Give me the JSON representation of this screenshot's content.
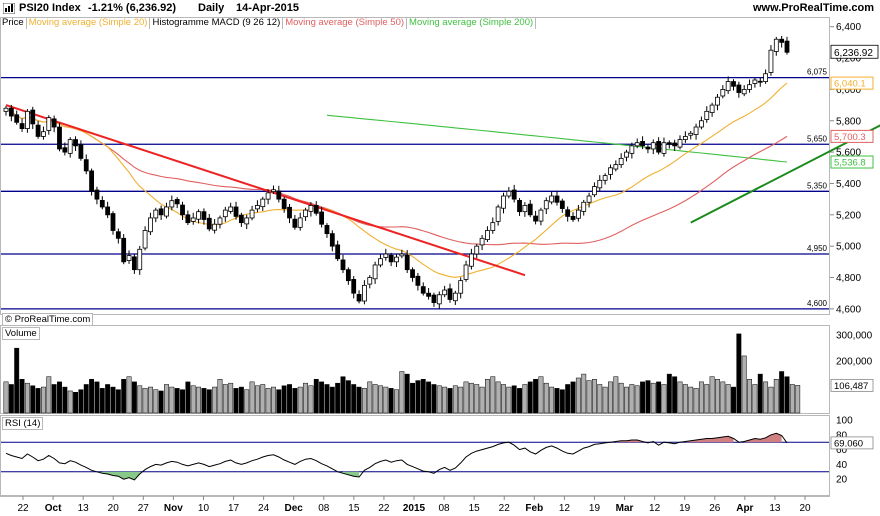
{
  "header": {
    "symbol": "PSI20 Index",
    "change": "-1.21% (6,236.92)",
    "period": "Daily",
    "date": "14-Apr-2015",
    "site": "www.ProRealTime.com"
  },
  "legend": {
    "items": [
      {
        "label": "Price",
        "color": "#000000"
      },
      {
        "label": "Moving average (Simple 20)",
        "color": "#f0b030"
      },
      {
        "label": "Histogramme MACD (9 26 12)",
        "color": "#000000"
      },
      {
        "label": "Moving average (Simple 50)",
        "color": "#e06060"
      },
      {
        "label": "Moving average (Simple 200)",
        "color": "#40c040"
      }
    ]
  },
  "copyright": "© ProRealTime.com",
  "volume_label": "Volume",
  "rsi_label": "RSI (14)",
  "colors": {
    "up_candle": "#ffffff",
    "down_candle": "#000000",
    "support_lines": "#00008b",
    "downtrend": "#ee2222",
    "uptrend": "#1a8a1a",
    "ma20": "#f0b030",
    "ma50": "#e06060",
    "ma200": "#40c040",
    "rsi_overbought_fill": "#d08080",
    "rsi_oversold_fill": "#88c888"
  },
  "chart_data": {
    "type": "candlestick",
    "title": "PSI20 Index",
    "price_axis": {
      "ticks": [
        4600,
        4800,
        5000,
        5200,
        5400,
        5600,
        5800,
        6000,
        6200,
        6400
      ],
      "ylim": [
        4580,
        6430
      ]
    },
    "x_tick_labels": [
      "22",
      "Oct",
      "13",
      "20",
      "27",
      "Nov",
      "10",
      "17",
      "24",
      "Dec",
      "08",
      "15",
      "22",
      "2015",
      "08",
      "15",
      "22",
      "Feb",
      "12",
      "19",
      "Mar",
      "12",
      "19",
      "26",
      "Apr",
      "13",
      "20"
    ],
    "horizontal_levels": [
      {
        "label": "6,075",
        "value": 6075
      },
      {
        "label": "5,650",
        "value": 5650
      },
      {
        "label": "5,350",
        "value": 5350
      },
      {
        "label": "4,950",
        "value": 4950
      },
      {
        "label": "4,600",
        "value": 4600
      }
    ],
    "last_price": {
      "label": "6,236.92",
      "value": 6236.92
    },
    "ma_values": [
      {
        "name": "Moving average (Simple 20)",
        "label": "6,040.1",
        "value": 6040.1
      },
      {
        "name": "Moving average (Simple 50)",
        "label": "5,700.3",
        "value": 5700.3
      },
      {
        "name": "Moving average (Simple 200)",
        "label": "5,536.8",
        "value": 5536.8
      }
    ],
    "trendlines": [
      {
        "name": "downtrend",
        "from": [
          0,
          5900
        ],
        "to": [
          120,
          4815
        ]
      },
      {
        "name": "uptrend",
        "from": [
          128,
          5150
        ],
        "to": [
          182,
          6135
        ]
      }
    ],
    "closes": [
      5880,
      5830,
      5790,
      5750,
      5860,
      5780,
      5700,
      5730,
      5820,
      5760,
      5620,
      5600,
      5680,
      5640,
      5560,
      5480,
      5350,
      5300,
      5250,
      5200,
      5100,
      5050,
      4900,
      4940,
      4850,
      4980,
      5100,
      5180,
      5230,
      5200,
      5250,
      5290,
      5270,
      5200,
      5150,
      5180,
      5220,
      5170,
      5110,
      5140,
      5180,
      5230,
      5250,
      5190,
      5150,
      5180,
      5230,
      5260,
      5300,
      5340,
      5360,
      5300,
      5240,
      5180,
      5120,
      5180,
      5230,
      5260,
      5210,
      5140,
      5080,
      5000,
      4920,
      4850,
      4780,
      4700,
      4650,
      4750,
      4800,
      4880,
      4920,
      4950,
      4900,
      4930,
      4950,
      4850,
      4800,
      4750,
      4700,
      4680,
      4640,
      4690,
      4720,
      4660,
      4700,
      4780,
      4880,
      4950,
      5000,
      5050,
      5100,
      5150,
      5250,
      5320,
      5350,
      5300,
      5220,
      5260,
      5200,
      5160,
      5230,
      5290,
      5320,
      5280,
      5240,
      5190,
      5170,
      5230,
      5280,
      5320,
      5380,
      5420,
      5450,
      5500,
      5520,
      5560,
      5600,
      5640,
      5660,
      5640,
      5620,
      5660,
      5600,
      5660,
      5650,
      5640,
      5680,
      5700,
      5720,
      5760,
      5800,
      5860,
      5900,
      5950,
      6000,
      6050,
      6020,
      5980,
      6000,
      6030,
      6060,
      6050,
      6100,
      6250,
      6320,
      6300,
      6236.92
    ],
    "volume": {
      "ticks": [
        100000,
        200000,
        300000
      ],
      "ylim": [
        0,
        320000
      ],
      "last_label": "106,487",
      "last_value": 106487,
      "values": [
        120000,
        110000,
        250000,
        130000,
        115000,
        105000,
        95000,
        100000,
        140000,
        110000,
        120000,
        100000,
        85000,
        80000,
        90000,
        110000,
        130000,
        120000,
        95000,
        110000,
        100000,
        90000,
        130000,
        140000,
        120000,
        105000,
        95000,
        100000,
        90000,
        85000,
        110000,
        100000,
        95000,
        90000,
        120000,
        105000,
        100000,
        95000,
        90000,
        100000,
        130000,
        110000,
        115000,
        95000,
        100000,
        90000,
        120000,
        105000,
        110000,
        95000,
        100000,
        90000,
        105000,
        110000,
        95000,
        100000,
        115000,
        105000,
        130000,
        120000,
        110000,
        100000,
        115000,
        140000,
        125000,
        110000,
        100000,
        95000,
        120000,
        110000,
        105000,
        100000,
        95000,
        90000,
        160000,
        150000,
        115000,
        125000,
        130000,
        120000,
        110000,
        105000,
        100000,
        95000,
        105000,
        100000,
        120000,
        115000,
        110000,
        100000,
        130000,
        140000,
        120000,
        110000,
        100000,
        105000,
        95000,
        110000,
        120000,
        130000,
        140000,
        115000,
        100000,
        95000,
        90000,
        110000,
        120000,
        135000,
        150000,
        125000,
        130000,
        110000,
        100000,
        120000,
        140000,
        115000,
        100000,
        110000,
        105000,
        120000,
        125000,
        115000,
        120000,
        110000,
        150000,
        140000,
        120000,
        110000,
        100000,
        95000,
        120000,
        110000,
        140000,
        130000,
        120000,
        110000,
        100000,
        305000,
        220000,
        130000,
        110000,
        150000,
        120000,
        100000,
        130000,
        160000,
        140000,
        110000,
        106487
      ]
    },
    "rsi": {
      "ticks": [
        20,
        40,
        60,
        80,
        100
      ],
      "ylim": [
        0,
        100
      ],
      "overbought": 70,
      "oversold": 30,
      "last_label": "69.060",
      "last_value": 69.06,
      "values": [
        55,
        52,
        50,
        48,
        54,
        50,
        45,
        47,
        52,
        48,
        42,
        41,
        45,
        43,
        39,
        36,
        32,
        30,
        28,
        27,
        25,
        24,
        20,
        22,
        19,
        27,
        33,
        37,
        40,
        39,
        42,
        44,
        43,
        40,
        38,
        40,
        42,
        40,
        37,
        39,
        41,
        44,
        46,
        42,
        40,
        42,
        45,
        47,
        50,
        52,
        53,
        50,
        46,
        43,
        40,
        44,
        47,
        48,
        45,
        41,
        38,
        34,
        30,
        28,
        26,
        24,
        23,
        32,
        36,
        41,
        44,
        46,
        43,
        45,
        46,
        40,
        37,
        34,
        31,
        30,
        28,
        33,
        36,
        32,
        35,
        42,
        50,
        55,
        58,
        60,
        62,
        64,
        67,
        69,
        70,
        66,
        60,
        62,
        57,
        54,
        59,
        63,
        65,
        62,
        58,
        55,
        54,
        58,
        62,
        64,
        67,
        68,
        69,
        70,
        71,
        72,
        72,
        73,
        73,
        71,
        69,
        71,
        66,
        70,
        69,
        68,
        70,
        71,
        72,
        73,
        74,
        75,
        75,
        76,
        77,
        78,
        75,
        70,
        71,
        73,
        75,
        74,
        76,
        80,
        82,
        79,
        69.06
      ]
    }
  }
}
